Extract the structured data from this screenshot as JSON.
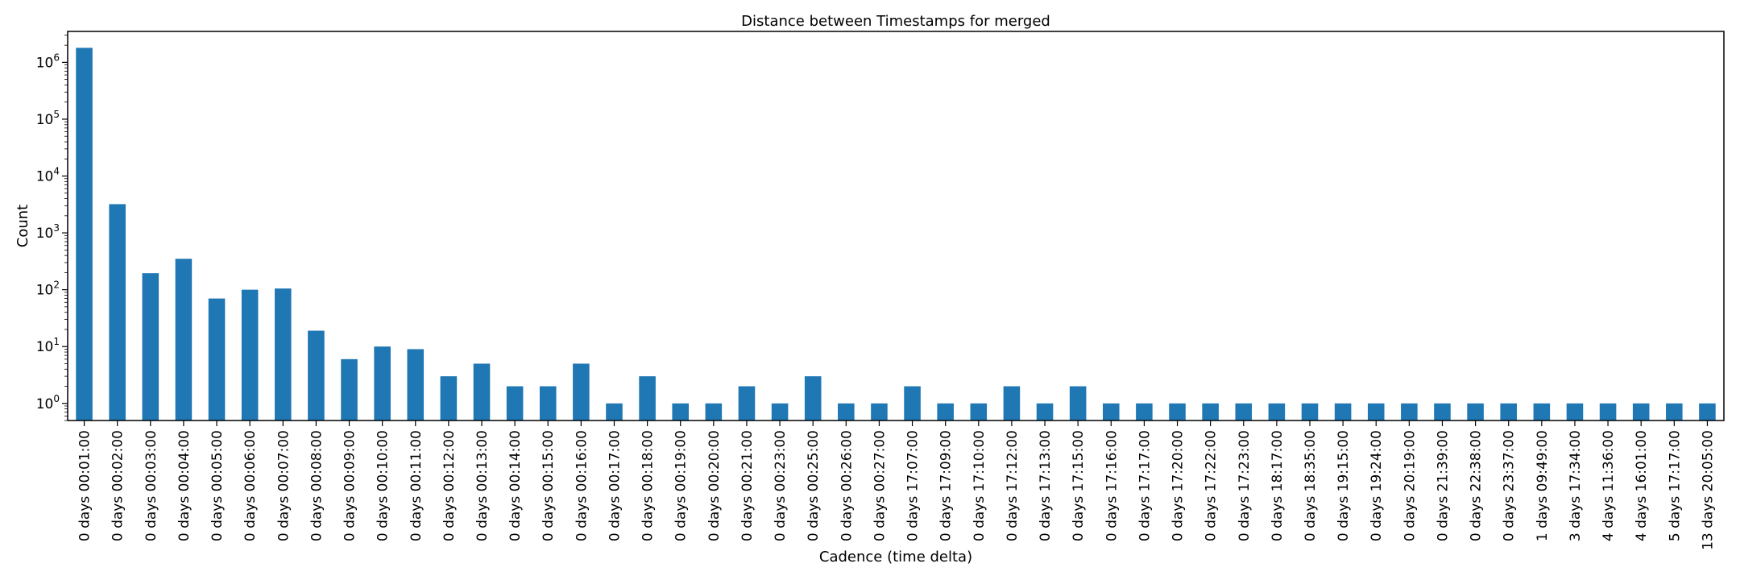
{
  "chart_data": {
    "type": "bar",
    "title": "Distance between Timestamps for merged",
    "xlabel": "Cadence (time delta)",
    "ylabel": "Count",
    "yscale": "log",
    "ylim": [
      0.5,
      3500000
    ],
    "bar_color": "#1f77b4",
    "grid": false,
    "yticks": [
      {
        "base": "10",
        "exp": "0",
        "value": 1
      },
      {
        "base": "10",
        "exp": "1",
        "value": 10
      },
      {
        "base": "10",
        "exp": "2",
        "value": 100
      },
      {
        "base": "10",
        "exp": "3",
        "value": 1000
      },
      {
        "base": "10",
        "exp": "4",
        "value": 10000
      },
      {
        "base": "10",
        "exp": "5",
        "value": 100000
      },
      {
        "base": "10",
        "exp": "6",
        "value": 1000000
      }
    ],
    "categories": [
      "0 days 00:01:00",
      "0 days 00:02:00",
      "0 days 00:03:00",
      "0 days 00:04:00",
      "0 days 00:05:00",
      "0 days 00:06:00",
      "0 days 00:07:00",
      "0 days 00:08:00",
      "0 days 00:09:00",
      "0 days 00:10:00",
      "0 days 00:11:00",
      "0 days 00:12:00",
      "0 days 00:13:00",
      "0 days 00:14:00",
      "0 days 00:15:00",
      "0 days 00:16:00",
      "0 days 00:17:00",
      "0 days 00:18:00",
      "0 days 00:19:00",
      "0 days 00:20:00",
      "0 days 00:21:00",
      "0 days 00:23:00",
      "0 days 00:25:00",
      "0 days 00:26:00",
      "0 days 00:27:00",
      "0 days 17:07:00",
      "0 days 17:09:00",
      "0 days 17:10:00",
      "0 days 17:12:00",
      "0 days 17:13:00",
      "0 days 17:15:00",
      "0 days 17:16:00",
      "0 days 17:17:00",
      "0 days 17:20:00",
      "0 days 17:22:00",
      "0 days 17:23:00",
      "0 days 18:17:00",
      "0 days 18:35:00",
      "0 days 19:15:00",
      "0 days 19:24:00",
      "0 days 20:19:00",
      "0 days 21:39:00",
      "0 days 22:38:00",
      "0 days 23:37:00",
      "1 days 09:49:00",
      "3 days 17:34:00",
      "4 days 11:36:00",
      "4 days 16:01:00",
      "5 days 17:17:00",
      "13 days 20:05:00"
    ],
    "values": [
      1800000,
      3200,
      195,
      350,
      70,
      100,
      105,
      19,
      6,
      10,
      9,
      3,
      5,
      2,
      2,
      5,
      1,
      3,
      1,
      1,
      2,
      1,
      3,
      1,
      1,
      2,
      1,
      1,
      2,
      1,
      2,
      1,
      1,
      1,
      1,
      1,
      1,
      1,
      1,
      1,
      1,
      1,
      1,
      1,
      1,
      1,
      1,
      1,
      1,
      1
    ]
  }
}
